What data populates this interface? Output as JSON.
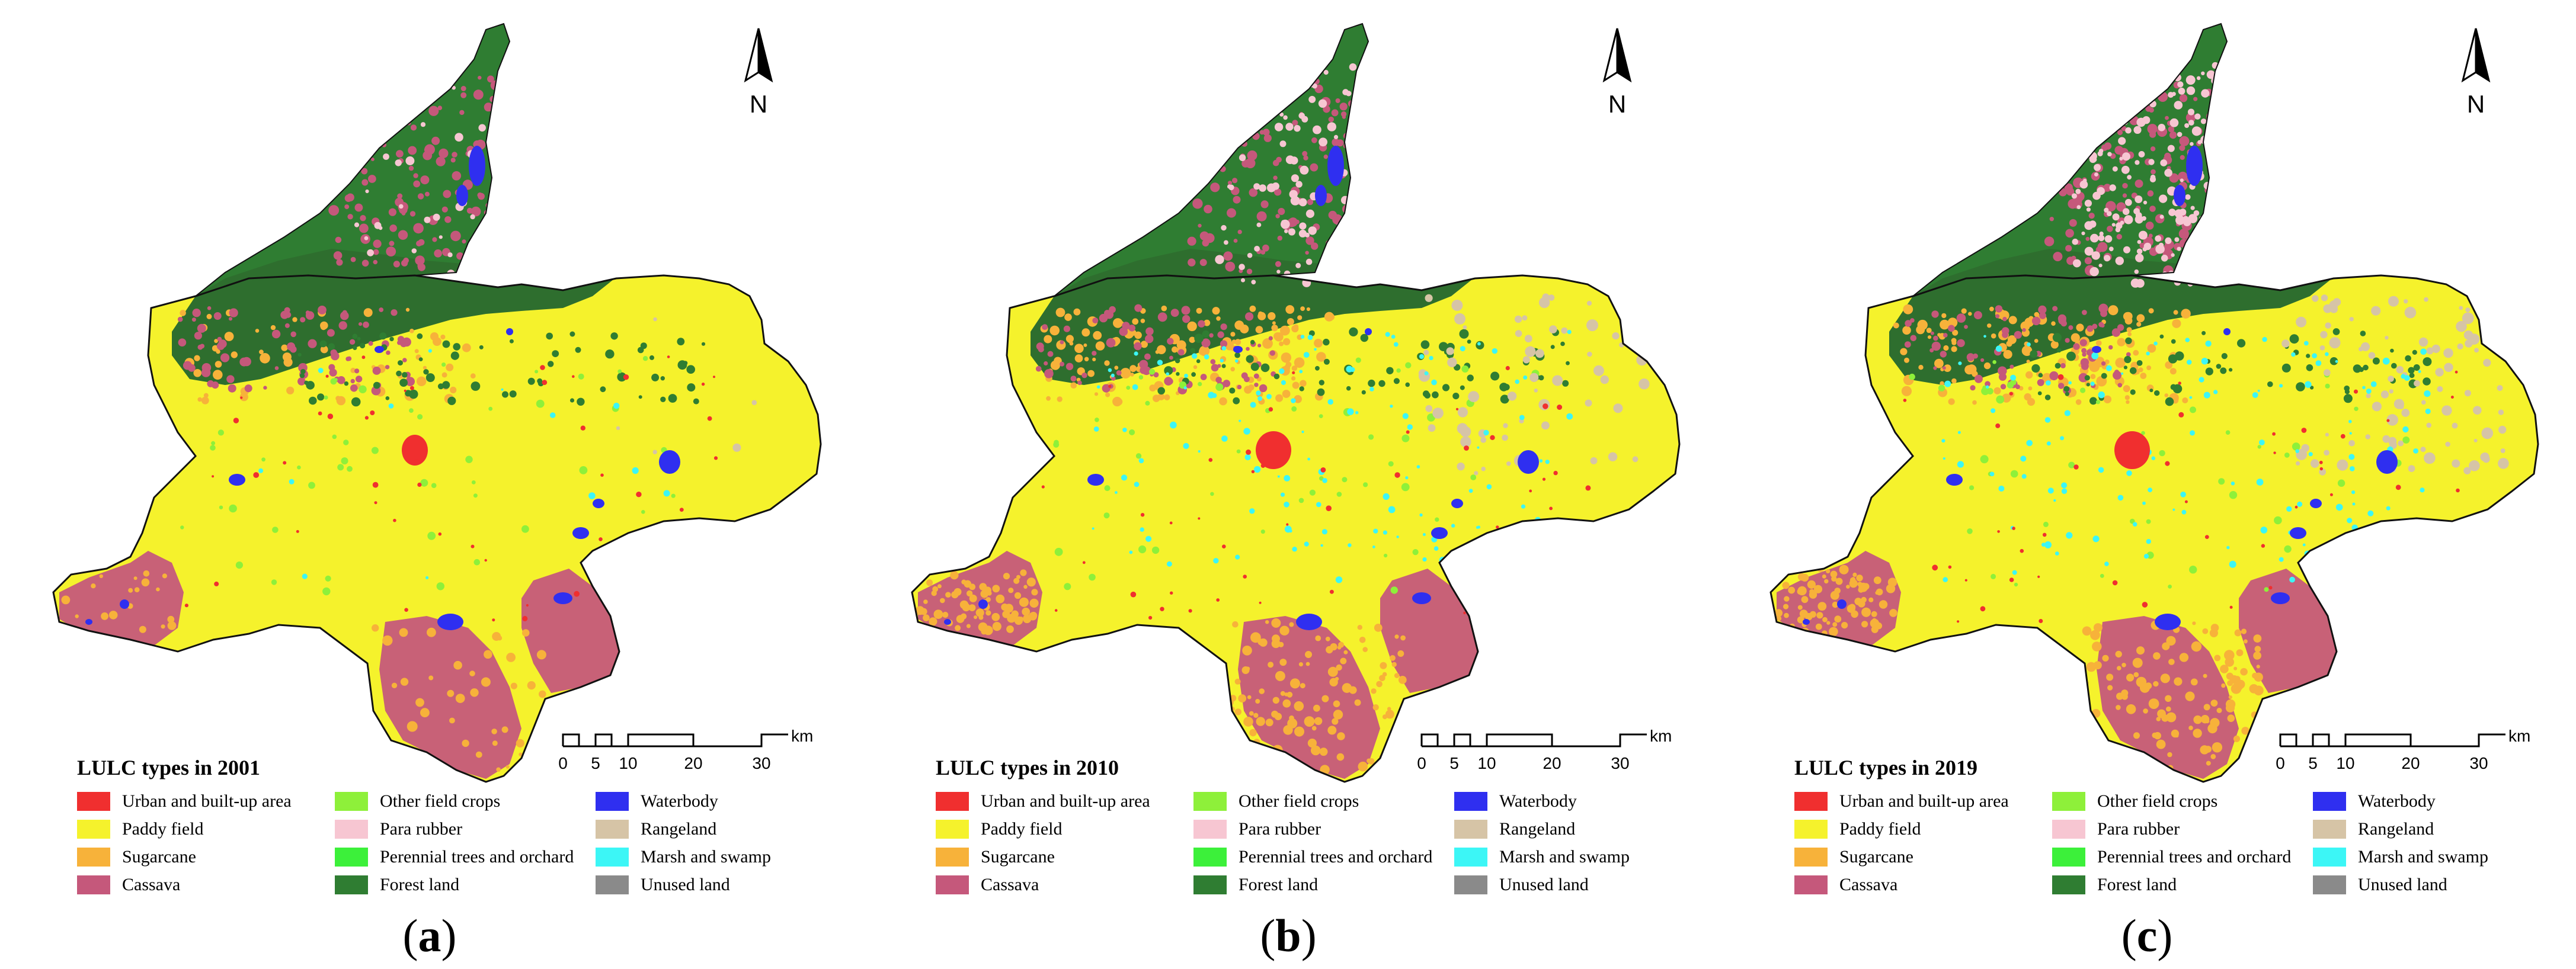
{
  "legend_colors": {
    "urban": "#f02f2f",
    "paddy": "#f5f22c",
    "sugarcane": "#f7b23a",
    "cassava": "#c5587b",
    "other_crops": "#8ef03a",
    "para_rubber": "#f7c6d2",
    "perennial": "#3cf03a",
    "forest": "#2f7d32",
    "waterbody": "#2f2ff0",
    "rangeland": "#d6c4a6",
    "marsh": "#3cf6f6",
    "unused": "#8a8a8a"
  },
  "legend_labels": [
    {
      "key": "urban",
      "label": "Urban and built-up area"
    },
    {
      "key": "paddy",
      "label": "Paddy field"
    },
    {
      "key": "sugarcane",
      "label": "Sugarcane"
    },
    {
      "key": "cassava",
      "label": "Cassava"
    },
    {
      "key": "other_crops",
      "label": "Other field crops"
    },
    {
      "key": "para_rubber",
      "label": "Para rubber"
    },
    {
      "key": "perennial",
      "label": "Perennial trees and orchard"
    },
    {
      "key": "forest",
      "label": "Forest land"
    },
    {
      "key": "waterbody",
      "label": "Waterbody"
    },
    {
      "key": "rangeland",
      "label": "Rangeland"
    },
    {
      "key": "marsh",
      "label": "Marsh and swamp"
    },
    {
      "key": "unused",
      "label": "Unused land"
    }
  ],
  "panels": [
    {
      "id": "a",
      "legend_title": "LULC types in 2001",
      "label_open": "(",
      "label_letter": "a",
      "label_close": ")"
    },
    {
      "id": "b",
      "legend_title": "LULC types in 2010",
      "label_open": "(",
      "label_letter": "b",
      "label_close": ")"
    },
    {
      "id": "c",
      "legend_title": "LULC types in 2019",
      "label_open": "(",
      "label_letter": "c",
      "label_close": ")"
    }
  ],
  "north_arrow": {
    "label": "N"
  },
  "scale_bar": {
    "unit": "km",
    "ticks": [
      "0",
      "5",
      "10",
      "20",
      "30"
    ]
  }
}
